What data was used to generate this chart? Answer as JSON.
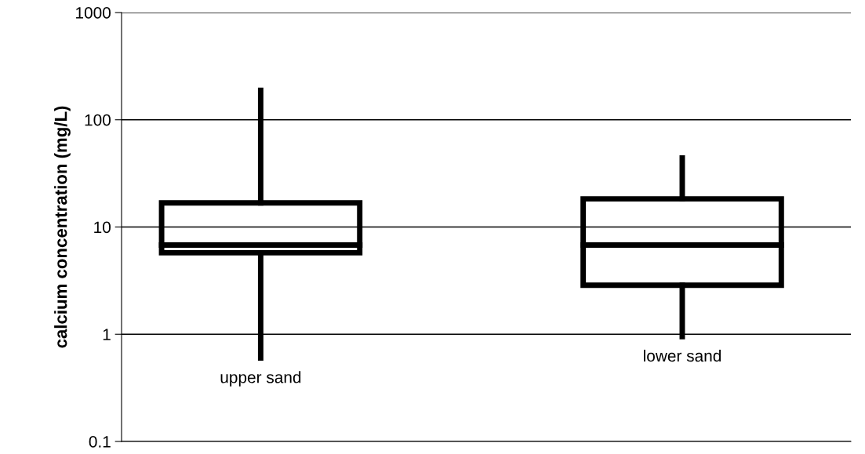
{
  "chart_data": {
    "type": "box",
    "ylabel": "calcium concentration (mg/L)",
    "categories": [
      "upper sand",
      "lower sand"
    ],
    "boxes": [
      {
        "low": 0.6,
        "q1": 5.75,
        "median": 6.8,
        "q3": 16.8,
        "high": 188
      },
      {
        "low": 0.95,
        "q1": 2.86,
        "median": 6.8,
        "q3": 18.3,
        "high": 44
      }
    ],
    "log": "y",
    "ylim": [
      0.1,
      1000
    ],
    "yticks": [
      0.1,
      1,
      10,
      100,
      1000
    ],
    "grid": "y",
    "color": "#000000"
  }
}
